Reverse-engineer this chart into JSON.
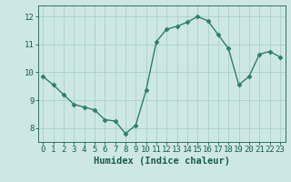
{
  "x": [
    0,
    1,
    2,
    3,
    4,
    5,
    6,
    7,
    8,
    9,
    10,
    11,
    12,
    13,
    14,
    15,
    16,
    17,
    18,
    19,
    20,
    21,
    22,
    23
  ],
  "y": [
    9.85,
    9.55,
    9.2,
    8.85,
    8.75,
    8.65,
    8.3,
    8.25,
    7.8,
    8.1,
    9.35,
    11.1,
    11.55,
    11.65,
    11.8,
    12.0,
    11.85,
    11.35,
    10.85,
    9.55,
    9.85,
    10.65,
    10.75,
    10.55
  ],
  "line_color": "#2e7d6e",
  "marker": "D",
  "marker_size": 2.5,
  "bg_color": "#cde8e4",
  "grid_color": "#aacfca",
  "xlabel": "Humidex (Indice chaleur)",
  "ylim": [
    7.5,
    12.4
  ],
  "xlim": [
    -0.5,
    23.5
  ],
  "yticks": [
    8,
    9,
    10,
    11,
    12
  ],
  "xticks": [
    0,
    1,
    2,
    3,
    4,
    5,
    6,
    7,
    8,
    9,
    10,
    11,
    12,
    13,
    14,
    15,
    16,
    17,
    18,
    19,
    20,
    21,
    22,
    23
  ],
  "font_color": "#1a5c50",
  "tick_fontsize": 6.5,
  "label_fontsize": 7.5
}
